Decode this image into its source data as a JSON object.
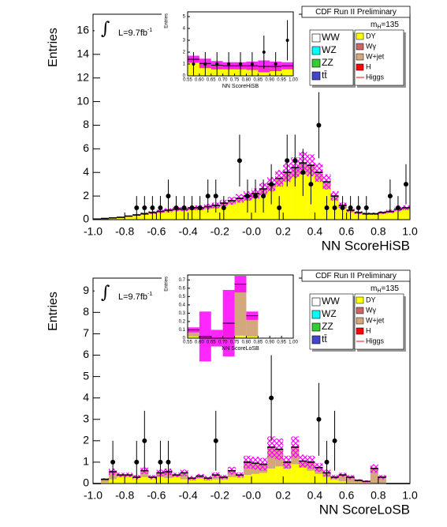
{
  "chart_data": [
    {
      "type": "histogram",
      "title": "CDF Run II Preliminary",
      "xlabel": "NN ScoreHiSB",
      "ylabel": "Entries",
      "integral": "∫",
      "lumi": "L=9.7fb",
      "lumi_exponent": "-1",
      "mass_symbol": "m",
      "mass_subscript": "H",
      "mass_value": "=135",
      "bins": [
        -1,
        -0.95,
        -0.9,
        -0.85,
        -0.8,
        -0.75,
        -0.7,
        -0.65,
        -0.6,
        -0.55,
        -0.5,
        -0.45,
        -0.4,
        -0.35,
        -0.3,
        -0.25,
        -0.2,
        -0.15,
        -0.1,
        -0.05,
        0,
        0.05,
        0.1,
        0.15,
        0.2,
        0.25,
        0.3,
        0.35,
        0.4,
        0.45,
        0.5,
        0.55,
        0.6,
        0.65,
        0.7,
        0.75,
        0.8,
        0.85,
        0.9,
        0.95,
        1
      ],
      "xlim": [
        -1,
        1
      ],
      "ylim": [
        0,
        17.4
      ],
      "xticks": [
        {
          "value": -1,
          "label": "-1.0"
        },
        -0.8,
        -0.6,
        -0.4,
        -0.2,
        {
          "value": 0,
          "label": "-0.0"
        },
        0.2,
        0.4,
        0.6,
        0.8,
        {
          "value": 1,
          "label": "1.0"
        }
      ],
      "yticks": [
        0,
        2,
        4,
        6,
        8,
        10,
        12,
        14,
        16
      ],
      "series": [
        {
          "name": "WW",
          "color": "#ffffff"
        },
        {
          "name": "WZ",
          "color": "#00ffff"
        },
        {
          "name": "ZZ",
          "color": "#33cc33"
        },
        {
          "name": "tt̄",
          "color": "#4444cc"
        },
        {
          "name": "DY",
          "color": "#ffff00",
          "values": [
            0.04,
            0.08,
            0.12,
            0.17,
            0.25,
            0.33,
            0.42,
            0.5,
            0.58,
            0.66,
            0.74,
            0.74,
            0.82,
            0.82,
            0.9,
            0.98,
            1.15,
            1.3,
            1.5,
            1.65,
            1.8,
            2.15,
            2.5,
            2.9,
            3.3,
            3.65,
            4.0,
            3.85,
            3.3,
            2.65,
            1.65,
            1.0,
            0.66,
            0.5,
            0.42,
            0.42,
            0.5,
            0.58,
            0.75,
            0.85
          ]
        },
        {
          "name": "Wγ",
          "color": "#cc6666"
        },
        {
          "name": "W+jet",
          "color": "#d2a87c",
          "values": [
            0.01,
            0.02,
            0.03,
            0.03,
            0.05,
            0.07,
            0.08,
            0.1,
            0.12,
            0.14,
            0.16,
            0.16,
            0.18,
            0.18,
            0.2,
            0.22,
            0.25,
            0.3,
            0.3,
            0.35,
            0.4,
            0.45,
            0.5,
            0.6,
            0.7,
            0.75,
            0.8,
            0.75,
            0.7,
            0.55,
            0.35,
            0.2,
            0.14,
            0.1,
            0.08,
            0.08,
            0.1,
            0.12,
            0.15,
            0.15
          ]
        },
        {
          "name": "H",
          "color": "#ff0000"
        },
        {
          "name": "Higgs",
          "color": "#ff0000",
          "style": "line"
        }
      ],
      "uncertainty": [
        0.01,
        0.02,
        0.03,
        0.04,
        0.06,
        0.08,
        0.1,
        0.12,
        0.14,
        0.16,
        0.18,
        0.18,
        0.2,
        0.2,
        0.22,
        0.24,
        0.28,
        0.32,
        0.36,
        0.4,
        0.44,
        0.52,
        0.6,
        0.7,
        0.8,
        0.88,
        0.96,
        0.92,
        0.8,
        0.64,
        0.4,
        0.24,
        0.16,
        0.12,
        0.1,
        0.1,
        0.12,
        0.14,
        0.18,
        0.2
      ],
      "uncertainty_color": "#ff00ff",
      "data": {
        "color": "#000000",
        "values": [
          null,
          null,
          null,
          null,
          null,
          1,
          1,
          1,
          1,
          2,
          1,
          1,
          1,
          1,
          2,
          2,
          1,
          null,
          5,
          2,
          2,
          2,
          3,
          1,
          5,
          5,
          4,
          3,
          8,
          1,
          1,
          1,
          1,
          1,
          1,
          null,
          null,
          2,
          1,
          3
        ],
        "errors": [
          null,
          null,
          null,
          null,
          null,
          1,
          1,
          1,
          1,
          1.4,
          1,
          1,
          1,
          1,
          1.4,
          1.4,
          1,
          null,
          2.2,
          1.4,
          1.4,
          1.4,
          1.7,
          1,
          2.2,
          2.2,
          2,
          1.7,
          2.8,
          1,
          1,
          1,
          1,
          1,
          1,
          null,
          null,
          1.4,
          1,
          1.7
        ]
      },
      "inset": {
        "xlabel": "NN ScoreHiSB",
        "ylabel": "Entries",
        "bins": [
          0.55,
          0.6,
          0.65,
          0.7,
          0.75,
          0.8,
          0.85,
          0.9,
          0.95,
          1
        ],
        "xlim": [
          0.55,
          1
        ],
        "ylim": [
          0,
          5.4
        ],
        "xticks": [
          0.55,
          {
            "value": 0.6,
            "label": "0.60"
          },
          0.65,
          {
            "value": 0.7,
            "label": "0.70"
          },
          0.75,
          {
            "value": 0.8,
            "label": "0.80"
          },
          0.85,
          {
            "value": 0.9,
            "label": "0.90"
          },
          0.95,
          {
            "value": 1,
            "label": "1.00"
          }
        ],
        "yticks": [
          0,
          1,
          2,
          3,
          4,
          5
        ],
        "series": [
          {
            "color": "#ffff00",
            "values": [
              1.2,
              0.9,
              0.8,
              0.75,
              0.75,
              0.75,
              0.7,
              0.7,
              0.75
            ]
          },
          {
            "color": "#d2a87c",
            "values": [
              0.2,
              0.15,
              0.1,
              0.1,
              0.1,
              0.1,
              0.1,
              0.1,
              0.1
            ]
          }
        ],
        "uncertainty": [
          0.3,
          0.4,
          0.35,
          0.3,
          0.3,
          0.35,
          0.5,
          0.4,
          0.3
        ],
        "uncertainty_color": "#ff00ff",
        "data": {
          "color": "#000000",
          "values": [
            1,
            1,
            1,
            1,
            1,
            1,
            2,
            1,
            3
          ],
          "errors": [
            1,
            1,
            1,
            1,
            1,
            1,
            1.4,
            1,
            1.7
          ]
        }
      }
    },
    {
      "type": "histogram",
      "title": "CDF Run II Preliminary",
      "xlabel": "NN ScoreLoSB",
      "ylabel": "Entries",
      "integral": "∫",
      "lumi": "L=9.7fb",
      "lumi_exponent": "-1",
      "mass_symbol": "m",
      "mass_subscript": "H",
      "mass_value": "=135",
      "bins": [
        -1,
        -0.95,
        -0.9,
        -0.85,
        -0.8,
        -0.75,
        -0.7,
        -0.65,
        -0.6,
        -0.55,
        -0.5,
        -0.45,
        -0.4,
        -0.35,
        -0.3,
        -0.25,
        -0.2,
        -0.15,
        -0.1,
        -0.05,
        0,
        0.05,
        0.1,
        0.15,
        0.2,
        0.25,
        0.3,
        0.35,
        0.4,
        0.45,
        0.5,
        0.55,
        0.6,
        0.65,
        0.7,
        0.75,
        0.8,
        0.85,
        0.9,
        0.95,
        1
      ],
      "xlim": [
        -1,
        1
      ],
      "ylim": [
        0,
        9.6
      ],
      "xticks": [
        {
          "value": -1,
          "label": "-1.0"
        },
        -0.8,
        -0.6,
        -0.4,
        -0.2,
        {
          "value": 0,
          "label": "-0.0"
        },
        0.2,
        0.4,
        0.6,
        0.8,
        {
          "value": 1,
          "label": "1.0"
        }
      ],
      "yticks": [
        0,
        1,
        2,
        3,
        4,
        5,
        6,
        7,
        8,
        9
      ],
      "series": [
        {
          "name": "WW",
          "color": "#ffffff"
        },
        {
          "name": "WZ",
          "color": "#00ffff"
        },
        {
          "name": "ZZ",
          "color": "#33cc33"
        },
        {
          "name": "tt̄",
          "color": "#4444cc"
        },
        {
          "name": "DY",
          "color": "#ffff00",
          "values": [
            0,
            0.05,
            0.2,
            0.3,
            0.3,
            0.25,
            0.3,
            0.25,
            0.3,
            0.25,
            0.3,
            0.2,
            0.2,
            0.25,
            0.2,
            0.2,
            0.2,
            0.3,
            0.3,
            0.4,
            0.45,
            0.5,
            0.7,
            0.8,
            0.7,
            0.9,
            0.75,
            0.6,
            0.45,
            0.3,
            0.2,
            0.1,
            0.05,
            0.05,
            0.05,
            0,
            0,
            0,
            0,
            0
          ]
        },
        {
          "name": "Wγ",
          "color": "#cc6666"
        },
        {
          "name": "W+jet",
          "color": "#d2a87c",
          "values": [
            0,
            0.15,
            0.35,
            0.1,
            0.1,
            0.05,
            0.3,
            0.05,
            0.2,
            0.3,
            0.1,
            0.3,
            0.05,
            0.1,
            0.05,
            0.2,
            0.1,
            0.3,
            0.1,
            0.6,
            0.5,
            0.4,
            1.0,
            0.8,
            0.3,
            0.8,
            0.3,
            0.4,
            0.3,
            0.2,
            0.1,
            0.3,
            0.25,
            0.1,
            0.05,
            0.7,
            0.3,
            0,
            0,
            0
          ]
        },
        {
          "name": "H",
          "color": "#ff0000"
        },
        {
          "name": "Higgs",
          "color": "#ff0000",
          "style": "line"
        }
      ],
      "uncertainty": [
        0,
        0.05,
        0.15,
        0.1,
        0.1,
        0.1,
        0.15,
        0.1,
        0.15,
        0.15,
        0.1,
        0.15,
        0.1,
        0.1,
        0.1,
        0.12,
        0.1,
        0.18,
        0.12,
        0.3,
        0.3,
        0.3,
        0.5,
        0.5,
        0.3,
        0.5,
        0.3,
        0.3,
        0.2,
        0.15,
        0.1,
        0.1,
        0.1,
        0.05,
        0.05,
        0.2,
        0.1,
        0,
        0,
        0
      ],
      "uncertainty_color": "#ff00ff",
      "data": {
        "color": "#000000",
        "values": [
          null,
          null,
          1,
          null,
          null,
          1,
          2,
          null,
          1,
          1,
          null,
          null,
          null,
          null,
          null,
          2,
          null,
          null,
          null,
          null,
          null,
          null,
          4,
          null,
          null,
          null,
          null,
          null,
          3,
          1,
          2,
          null,
          null,
          null,
          null,
          null,
          null,
          null,
          null,
          null
        ],
        "errors": [
          null,
          null,
          1,
          null,
          null,
          1,
          1.4,
          null,
          1,
          1,
          null,
          null,
          null,
          null,
          null,
          1.4,
          null,
          null,
          null,
          null,
          null,
          null,
          2,
          null,
          null,
          null,
          null,
          null,
          1.7,
          1,
          1.4,
          null,
          null,
          null,
          null,
          null,
          null,
          null,
          null,
          null
        ]
      },
      "inset": {
        "xlabel": "NN ScoreLoSB",
        "ylabel": "Entries",
        "bins": [
          0.55,
          0.6,
          0.65,
          0.7,
          0.75,
          0.8,
          0.85,
          0.9,
          0.95,
          1
        ],
        "xlim": [
          0.55,
          1
        ],
        "ylim": [
          0,
          0.76
        ],
        "xticks": [
          0.55,
          {
            "value": 0.6,
            "label": "0.60"
          },
          0.65,
          {
            "value": 0.7,
            "label": "0.70"
          },
          0.75,
          {
            "value": 0.8,
            "label": "0.80"
          },
          0.85,
          {
            "value": 0.9,
            "label": "0.90"
          },
          0.95,
          {
            "value": 1,
            "label": "1.00"
          }
        ],
        "yticks": [
          0,
          0.1,
          0.2,
          0.3,
          0.4,
          0.5,
          0.6,
          0.7
        ],
        "series": [
          {
            "color": "#ffff00",
            "values": [
              0.02,
              0.01,
              0,
              0.02,
              0.03,
              0.02,
              0,
              0,
              0
            ]
          },
          {
            "color": "#d2a87c",
            "values": [
              0.08,
              0.01,
              0,
              0.16,
              0.62,
              0.25,
              0,
              0,
              0
            ]
          }
        ],
        "uncertainty": [
          0.03,
          0.3,
          0.1,
          0.4,
          0.1,
          0.05,
          0,
          0,
          0
        ],
        "uncertainty_color": "#ff00ff"
      }
    }
  ]
}
